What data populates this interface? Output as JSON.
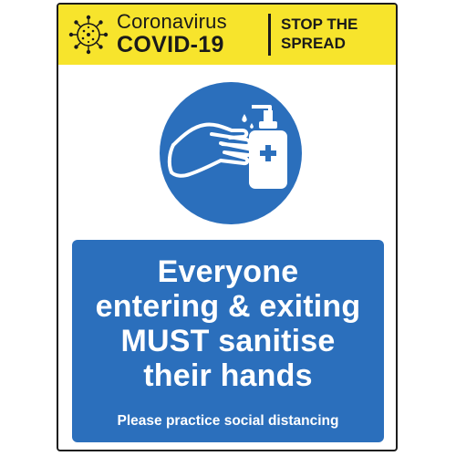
{
  "header": {
    "title_top": "Coronavirus",
    "title_main": "COVID-19",
    "tagline_line1": "STOP THE",
    "tagline_line2": "SPREAD",
    "virus_icon": "virus-icon",
    "background_color": "#f7e42c"
  },
  "pictogram": {
    "icon": "hand-sanitiser-icon",
    "circle_color": "#2b6fbc"
  },
  "panel": {
    "line1": "Everyone",
    "line2": "entering & exiting",
    "line3": "MUST sanitise",
    "line4": "their hands",
    "subtext": "Please practice social distancing",
    "background_color": "#2b6fbc"
  }
}
